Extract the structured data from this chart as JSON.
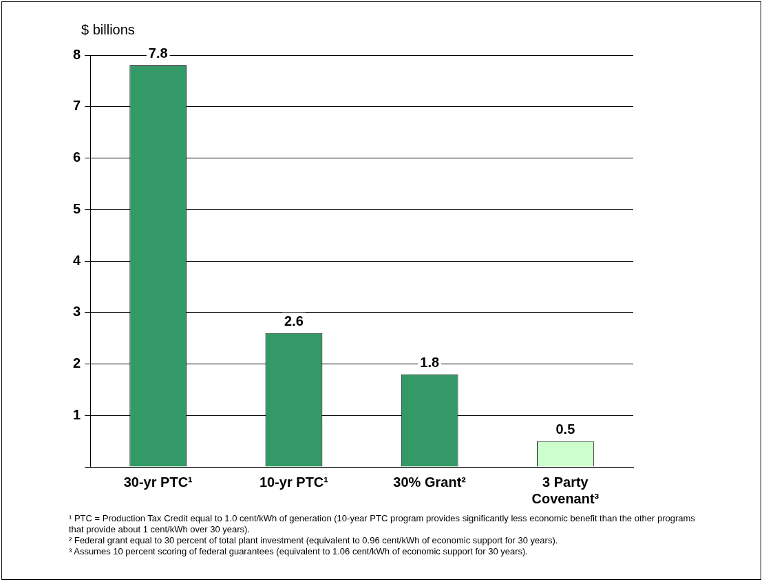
{
  "chart_data": {
    "type": "bar",
    "ylabel": "$ billions",
    "categories": [
      "30-yr PTC¹",
      "10-yr PTC¹",
      "30% Grant²",
      "3 Party Covenant³"
    ],
    "values": [
      7.8,
      2.6,
      1.8,
      0.5
    ],
    "colors": [
      "#339966",
      "#339966",
      "#339966",
      "#ccffcc"
    ],
    "ylim": [
      0,
      8
    ],
    "yticks": [
      {
        "value": 0,
        "label": null
      },
      1,
      2,
      3,
      4,
      5,
      6,
      7,
      8
    ],
    "grid": "y",
    "legend": false,
    "data_labels": true,
    "annotations": [
      "¹ PTC = Production Tax Credit equal to 1.0 cent/kWh of generation (10-year PTC program provides significantly less economic benefit than the other programs that provide about 1 cent/kWh over 30 years).",
      "² Federal grant equal to 30 percent of total plant investment (equivalent to 0.96 cent/kWh of economic support for 30 years).",
      "³ Assumes 10 percent scoring of federal guarantees (equivalent to 1.06 cent/kWh of economic support for 30 years)."
    ]
  }
}
